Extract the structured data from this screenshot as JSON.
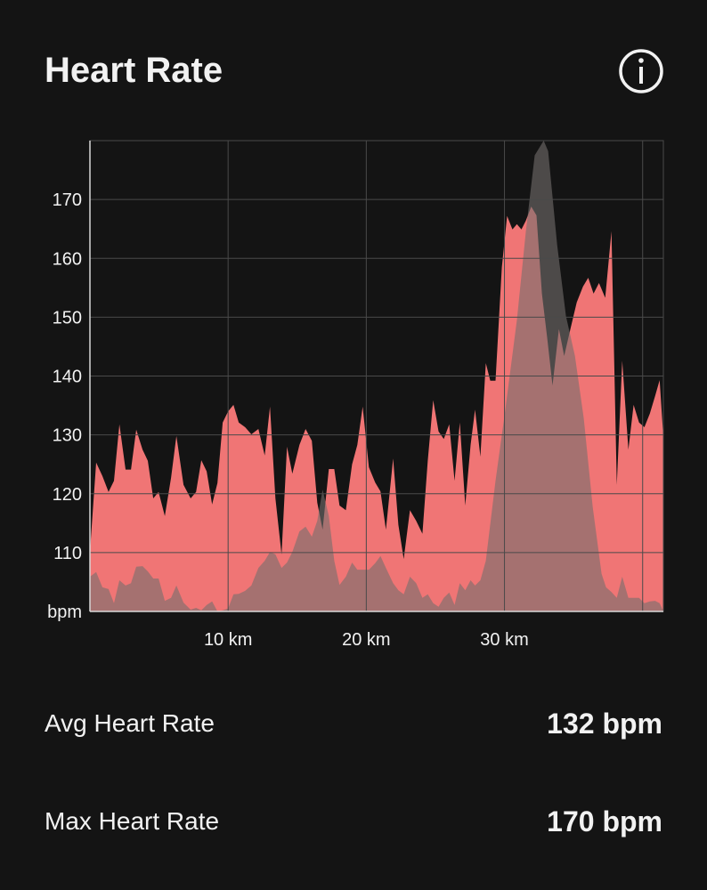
{
  "header": {
    "title": "Heart Rate"
  },
  "chart_data": {
    "type": "area",
    "xlim": [
      0,
      41.5
    ],
    "ylim": [
      100,
      180
    ],
    "xticks": [
      {
        "value": 10,
        "label": "10 km"
      },
      {
        "value": 20,
        "label": "20 km"
      },
      {
        "value": 30,
        "label": "30 km"
      },
      {
        "value": 40,
        "label": null
      }
    ],
    "yticks": [
      {
        "value": 100,
        "label": "bpm"
      },
      110,
      120,
      130,
      140,
      150,
      160,
      170
    ],
    "grid": true,
    "series": [
      {
        "color": "#f07575",
        "x": [
          0,
          0.45,
          0.9,
          1.35,
          1.74,
          2.13,
          2.58,
          2.97,
          3.35,
          3.81,
          4.19,
          4.58,
          4.97,
          5.42,
          5.87,
          6.26,
          6.77,
          7.29,
          7.68,
          8.06,
          8.45,
          8.84,
          9.23,
          9.61,
          10,
          10.39,
          10.77,
          11.23,
          11.68,
          12.19,
          12.65,
          13.03,
          13.42,
          13.87,
          14.26,
          14.65,
          15.16,
          15.61,
          16.06,
          16.45,
          16.84,
          17.29,
          17.68,
          18.06,
          18.52,
          18.97,
          19.35,
          19.74,
          20.19,
          20.65,
          21.03,
          21.42,
          21.94,
          22.32,
          22.71,
          23.16,
          23.61,
          24.06,
          24.45,
          24.84,
          25.23,
          25.61,
          26,
          26.39,
          26.77,
          27.16,
          27.55,
          27.87,
          28.26,
          28.65,
          28.97,
          29.35,
          29.81,
          30.19,
          30.58,
          30.9,
          31.23,
          31.55,
          31.94,
          32.32,
          32.71,
          33.1,
          33.48,
          33.94,
          34.32,
          34.77,
          35.23,
          35.68,
          36.06,
          36.45,
          36.84,
          37.29,
          37.74,
          38.13,
          38.52,
          38.97,
          39.35,
          39.74,
          40.13,
          40.52,
          40.9,
          41.23,
          41.5
        ],
        "values": [
          110.1,
          125.3,
          123.0,
          120.3,
          122.2,
          131.8,
          124.1,
          124.1,
          130.9,
          127.5,
          125.6,
          119.2,
          120.3,
          116.2,
          122.7,
          129.8,
          121.5,
          119.2,
          120.3,
          125.7,
          123.8,
          118.2,
          121.8,
          132.1,
          134.0,
          135.1,
          132.1,
          131.3,
          130.1,
          131.0,
          126.5,
          134.8,
          119.2,
          109.7,
          128.0,
          123.4,
          128.3,
          131.0,
          129.0,
          118.5,
          113.9,
          124.2,
          124.2,
          118.0,
          117.2,
          125.0,
          128.3,
          134.8,
          124.5,
          121.9,
          120.4,
          113.9,
          126.0,
          114.7,
          108.9,
          117.2,
          115.4,
          113.2,
          125.6,
          135.9,
          130.6,
          129.3,
          131.8,
          122.2,
          132.1,
          118.0,
          128.3,
          134.3,
          126.3,
          142.2,
          139.2,
          139.2,
          158.5,
          167.2,
          164.9,
          165.8,
          164.9,
          166.4,
          168.8,
          167.3,
          154.0,
          146.4,
          138.4,
          148.0,
          143.4,
          148.0,
          152.5,
          155.2,
          156.7,
          154.0,
          155.8,
          153.3,
          164.6,
          121.5,
          142.6,
          127.5,
          135.1,
          132.1,
          131.3,
          133.6,
          136.6,
          139.3,
          129.6
        ]
      },
      {
        "color": "rgba(115,110,108,0.6)",
        "x": [
          0,
          0.45,
          0.9,
          1.35,
          1.74,
          2.13,
          2.58,
          2.97,
          3.35,
          3.81,
          4.19,
          4.58,
          4.97,
          5.42,
          5.87,
          6.26,
          6.77,
          7.29,
          7.68,
          8.06,
          8.45,
          8.84,
          9.23,
          9.61,
          10,
          10.39,
          10.77,
          11.23,
          11.68,
          12.19,
          12.65,
          13.03,
          13.42,
          13.87,
          14.26,
          14.65,
          15.16,
          15.61,
          16.06,
          16.45,
          16.84,
          17.29,
          17.68,
          18.06,
          18.52,
          18.97,
          19.35,
          19.74,
          20.19,
          20.65,
          21.03,
          21.42,
          21.94,
          22.32,
          22.71,
          23.16,
          23.61,
          24.06,
          24.45,
          24.84,
          25.23,
          25.61,
          26,
          26.39,
          26.77,
          27.16,
          27.55,
          27.87,
          28.26,
          28.65,
          29.35,
          30.06,
          30.9,
          31.55,
          32.19,
          32.84,
          33.16,
          33.81,
          34.45,
          35.1,
          35.74,
          36.39,
          37.03,
          37.35,
          37.74,
          38.13,
          38.52,
          38.97,
          39.35,
          39.74,
          40.13,
          40.52,
          40.9,
          41.23,
          41.5
        ],
        "values": [
          105.9,
          106.7,
          104.1,
          103.8,
          101.4,
          105.3,
          104.4,
          104.8,
          107.6,
          107.7,
          106.8,
          105.6,
          105.6,
          101.8,
          102.3,
          104.4,
          101.5,
          100.3,
          100.6,
          100.2,
          101.1,
          101.7,
          100,
          100.2,
          100.5,
          102.9,
          103.0,
          103.5,
          104.4,
          107.4,
          108.6,
          110.1,
          109.7,
          107.4,
          108.3,
          110.1,
          113.6,
          114.4,
          112.7,
          115.4,
          120.7,
          116.2,
          108.6,
          104.5,
          105.9,
          108.3,
          107.1,
          107.1,
          107.1,
          108.2,
          109.4,
          107.4,
          104.8,
          103.6,
          102.9,
          105.9,
          104.8,
          102.3,
          102.9,
          101.4,
          100.8,
          102.3,
          103.2,
          101.1,
          104.8,
          103.6,
          105.3,
          104.4,
          105.3,
          108.6,
          122.2,
          134.3,
          149.5,
          164.6,
          177.5,
          180,
          178.2,
          162.3,
          150.2,
          143.4,
          132.8,
          117.7,
          106.4,
          104.1,
          103.3,
          102.3,
          105.9,
          102.3,
          102.3,
          102.3,
          101.4,
          101.7,
          101.8,
          101.4,
          100
        ]
      }
    ]
  },
  "stats": [
    {
      "label": "Avg Heart Rate",
      "value": "132 bpm"
    },
    {
      "label": "Max Heart Rate",
      "value": "170 bpm"
    }
  ]
}
